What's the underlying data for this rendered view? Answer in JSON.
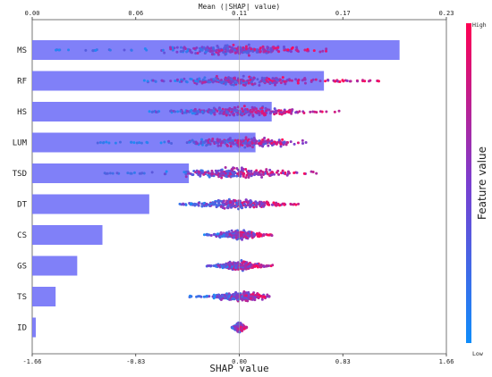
{
  "chart_data": {
    "type": "bar",
    "top_axis": {
      "label": "Mean (|SHAP| value)",
      "ticks": [
        "0.00",
        "0.06",
        "0.11",
        "0.17",
        "0.23"
      ],
      "range": [
        0,
        0.23
      ]
    },
    "bottom_axis": {
      "label": "SHAP value",
      "ticks": [
        "-1.66",
        "-0.83",
        "0.00",
        "0.83",
        "1.66"
      ],
      "range": [
        -1.66,
        1.66
      ]
    },
    "features": [
      "MS",
      "RF",
      "HS",
      "LUM",
      "TSD",
      "DT",
      "CS",
      "GS",
      "TS",
      "ID"
    ],
    "mean_abs_shap": [
      0.204,
      0.162,
      0.133,
      0.124,
      0.087,
      0.065,
      0.039,
      0.025,
      0.013,
      0.002
    ],
    "beeswarm": [
      {
        "feature": "MS",
        "min": -1.53,
        "max": 0.72,
        "core": [
          -0.55,
          0.45
        ]
      },
      {
        "feature": "RF",
        "min": -0.78,
        "max": 1.12,
        "core": [
          -0.5,
          0.55
        ]
      },
      {
        "feature": "HS",
        "min": -0.72,
        "max": 0.82,
        "core": [
          -0.45,
          0.55
        ]
      },
      {
        "feature": "LUM",
        "min": -1.14,
        "max": 0.55,
        "core": [
          -0.4,
          0.4
        ]
      },
      {
        "feature": "TSD",
        "min": -1.12,
        "max": 0.62,
        "core": [
          -0.4,
          0.35
        ]
      },
      {
        "feature": "DT",
        "min": -0.48,
        "max": 0.48,
        "core": [
          -0.35,
          0.3
        ]
      },
      {
        "feature": "CS",
        "min": -0.28,
        "max": 0.28,
        "core": [
          -0.18,
          0.18
        ]
      },
      {
        "feature": "GS",
        "min": -0.26,
        "max": 0.28,
        "core": [
          -0.18,
          0.18
        ]
      },
      {
        "feature": "TS",
        "min": -0.4,
        "max": 0.24,
        "core": [
          -0.2,
          0.22
        ]
      },
      {
        "feature": "ID",
        "min": -0.06,
        "max": 0.06,
        "core": [
          -0.04,
          0.04
        ]
      }
    ],
    "colorbar": {
      "label": "Feature value",
      "high": "High",
      "low": "Low"
    },
    "colors": {
      "bar": "#6e6ef7",
      "high": "#ff0a5a",
      "low": "#1e8cf5",
      "axis": "#222222"
    }
  }
}
